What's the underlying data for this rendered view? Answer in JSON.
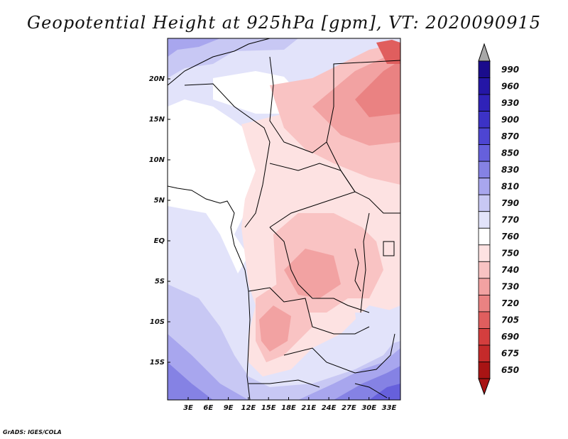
{
  "title": "Geopotential Height at 925hPa [gpm], VT: 2020090915",
  "footer": "GrADS: IGES/COLA",
  "map": {
    "lat_ticks": [
      "20N",
      "15N",
      "10N",
      "5N",
      "EQ",
      "5S",
      "10S",
      "15S"
    ],
    "lon_ticks": [
      "3E",
      "6E",
      "9E",
      "12E",
      "15E",
      "18E",
      "21E",
      "24E",
      "27E",
      "30E",
      "33E"
    ]
  },
  "colorbar": {
    "levels": [
      {
        "label": "990",
        "color": "#1a0c8c"
      },
      {
        "label": "960",
        "color": "#2416a6"
      },
      {
        "label": "930",
        "color": "#2f22b8"
      },
      {
        "label": "900",
        "color": "#3c32c6"
      },
      {
        "label": "870",
        "color": "#4d45d2"
      },
      {
        "label": "850",
        "color": "#6660dc"
      },
      {
        "label": "830",
        "color": "#8582e4"
      },
      {
        "label": "810",
        "color": "#a8a6ee"
      },
      {
        "label": "790",
        "color": "#c8c8f4"
      },
      {
        "label": "770",
        "color": "#e2e3fa"
      },
      {
        "label": "760",
        "color": "#ffffff"
      },
      {
        "label": "750",
        "color": "#fde2e2"
      },
      {
        "label": "740",
        "color": "#f9c3c3"
      },
      {
        "label": "730",
        "color": "#f2a2a2"
      },
      {
        "label": "720",
        "color": "#ea8282"
      },
      {
        "label": "705",
        "color": "#e05e5e"
      },
      {
        "label": "690",
        "color": "#d43e3e"
      },
      {
        "label": "675",
        "color": "#c42a2a"
      },
      {
        "label": "650",
        "color": "#a81414"
      }
    ]
  }
}
